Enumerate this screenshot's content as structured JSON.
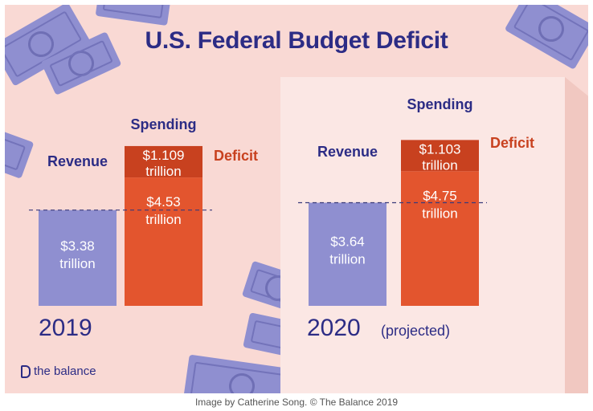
{
  "title": "U.S. Federal Budget Deficit",
  "brand": "the balance",
  "caption": "Image by Catherine Song. © The Balance 2019",
  "colors": {
    "background": "#f9d9d4",
    "revenue": "#8f8fd0",
    "spending": "#e3552e",
    "deficit": "#c8411f",
    "title": "#2c2c85"
  },
  "chart_data": {
    "type": "bar",
    "title": "U.S. Federal Budget Deficit",
    "units": "trillion",
    "groups": [
      {
        "year": "2019",
        "note": "",
        "revenue": {
          "label": "Revenue",
          "value": 3.38,
          "text": "$3.38\ntrillion"
        },
        "spending": {
          "label": "Spending",
          "value": 4.53,
          "text": "$4.53\ntrillion"
        },
        "deficit": {
          "label": "Deficit",
          "value": 1.109,
          "text": "$1.109\ntrillion"
        }
      },
      {
        "year": "2020",
        "note": "(projected)",
        "revenue": {
          "label": "Revenue",
          "value": 3.64,
          "text": "$3.64\ntrillion"
        },
        "spending": {
          "label": "Spending",
          "value": 4.75,
          "text": "$4.75\ntrillion"
        },
        "deficit": {
          "label": "Deficit",
          "value": 1.103,
          "text": "$1.103\ntrillion"
        }
      }
    ]
  }
}
